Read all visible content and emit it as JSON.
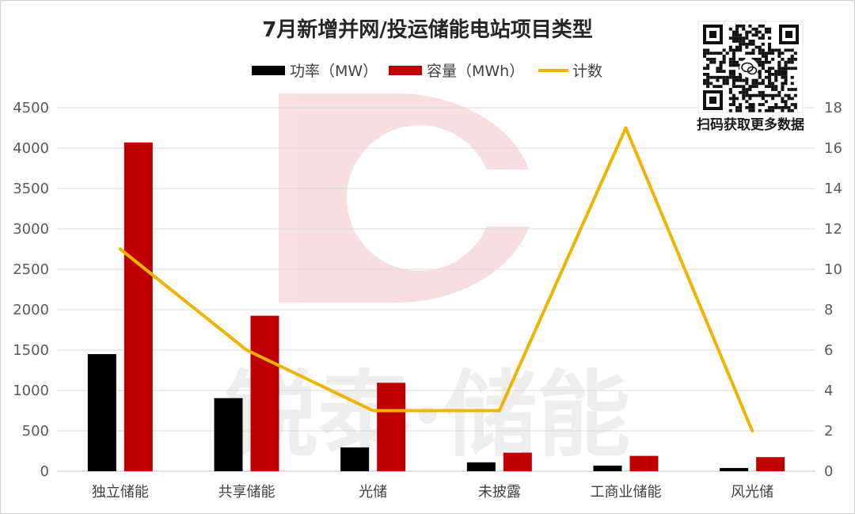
{
  "chart_data": {
    "type": "bar",
    "title": "7月新增并网/投运储能电站项目类型",
    "categories": [
      "独立储能",
      "共享储能",
      "光储",
      "未披露",
      "工商业储能",
      "风光储"
    ],
    "series": [
      {
        "name": "功率（MW）",
        "kind": "bar",
        "axis": "left",
        "color": "#000000",
        "values": [
          1450,
          905,
          295,
          110,
          70,
          40
        ]
      },
      {
        "name": "容量（MWh）",
        "kind": "bar",
        "axis": "left",
        "color": "#c00000",
        "values": [
          4070,
          1925,
          1095,
          230,
          190,
          175
        ]
      },
      {
        "name": "计数",
        "kind": "line",
        "axis": "right",
        "color": "#f0b400",
        "values": [
          11,
          6,
          3,
          3,
          17,
          2
        ]
      }
    ],
    "y_left": {
      "min": 0,
      "max": 4500,
      "ticks": [
        0,
        500,
        1000,
        1500,
        2000,
        2500,
        3000,
        3500,
        4000,
        4500
      ]
    },
    "y_right": {
      "min": 0,
      "max": 18,
      "ticks": [
        0,
        2,
        4,
        6,
        8,
        10,
        12,
        14,
        16,
        18
      ]
    },
    "grid": true,
    "legend_position": "top"
  },
  "qr": {
    "caption": "扫码获取更多数据"
  },
  "watermark": {
    "text": "锐泰·储能"
  }
}
